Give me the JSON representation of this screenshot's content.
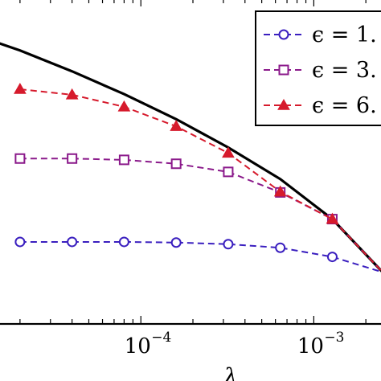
{
  "chart_data": {
    "type": "line",
    "xscale": "log",
    "xlabel": "λ",
    "ylabel": "",
    "xlim": [
      1.5e-05,
      0.0025
    ],
    "ylim": [
      0,
      1
    ],
    "x_ticks": [
      {
        "value": 0.0001,
        "label": "10",
        "exp": "−4"
      },
      {
        "value": 0.001,
        "label": "10",
        "exp": "−3"
      }
    ],
    "grid": false,
    "legend_position": "top-right",
    "series": [
      {
        "name": "",
        "style": "solid",
        "color": "#000000",
        "marker": "none",
        "x": [
          1.5e-05,
          2e-05,
          4e-05,
          8e-05,
          0.00016,
          0.00032,
          0.00064,
          0.00128,
          0.0025
        ],
        "y": [
          0.863,
          0.84,
          0.776,
          0.706,
          0.629,
          0.542,
          0.445,
          0.322,
          0.159
        ]
      },
      {
        "name": "ϵ = 1.",
        "style": "dashed",
        "color": "#3a1fbf",
        "marker": "circle",
        "x": [
          2e-05,
          4e-05,
          8e-05,
          0.00016,
          0.00032,
          0.00064,
          0.00128,
          0.0025
        ],
        "y": [
          0.252,
          0.252,
          0.252,
          0.25,
          0.245,
          0.234,
          0.206,
          0.159
        ]
      },
      {
        "name": "ϵ = 3.",
        "style": "dashed",
        "color": "#8b1a8b",
        "marker": "square",
        "x": [
          2e-05,
          4e-05,
          8e-05,
          0.00016,
          0.00032,
          0.00064,
          0.00128,
          0.0025
        ],
        "y": [
          0.508,
          0.508,
          0.504,
          0.492,
          0.467,
          0.404,
          0.322,
          0.159
        ]
      },
      {
        "name": "ϵ = 6.",
        "style": "dashed",
        "color": "#d61a2c",
        "marker": "triangle",
        "x": [
          2e-05,
          4e-05,
          8e-05,
          0.00016,
          0.00032,
          0.00064,
          0.00128,
          0.0025
        ],
        "y": [
          0.721,
          0.704,
          0.667,
          0.607,
          0.525,
          0.406,
          0.322,
          0.159
        ]
      }
    ]
  }
}
